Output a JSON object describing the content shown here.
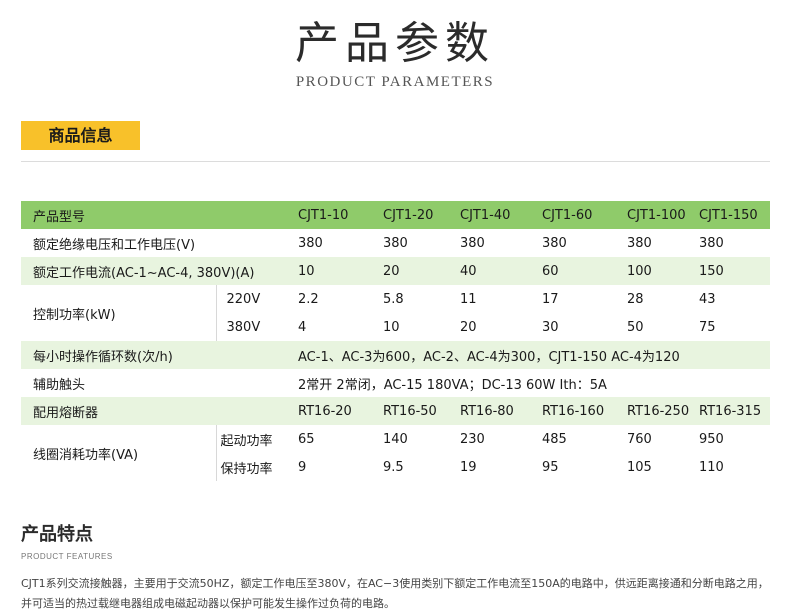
{
  "header": {
    "title": "产品参数",
    "subtitle": "PRODUCT PARAMETERS"
  },
  "section": {
    "tag": "商品信息"
  },
  "table": {
    "model": {
      "label": "产品型号",
      "values": [
        "CJT1-10",
        "CJT1-20",
        "CJT1-40",
        "CJT1-60",
        "CJT1-100",
        "CJT1-150"
      ]
    },
    "insulation_voltage": {
      "label": "额定绝缘电压和工作电压(V)",
      "values": [
        "380",
        "380",
        "380",
        "380",
        "380",
        "380"
      ]
    },
    "rated_current": {
      "label": "额定工作电流(AC-1~AC-4, 380V)(A)",
      "values": [
        "10",
        "20",
        "40",
        "60",
        "100",
        "150"
      ]
    },
    "control_power": {
      "label": "控制功率(kW)",
      "rows": [
        {
          "sub": "220V",
          "values": [
            "2.2",
            "5.8",
            "11",
            "17",
            "28",
            "43"
          ]
        },
        {
          "sub": "380V",
          "values": [
            "4",
            "10",
            "20",
            "30",
            "50",
            "75"
          ]
        }
      ]
    },
    "cycles": {
      "label": "每小时操作循环数(次/h)",
      "value": "AC-1、AC-3为600，AC-2、AC-4为300，CJT1-150  AC-4为120"
    },
    "aux_contacts": {
      "label": "辅助触头",
      "value": "2常开  2常闭，AC-15   180VA；DC-13  60W  Ith：5A"
    },
    "fuse": {
      "label": "配用熔断器",
      "values": [
        "RT16-20",
        "RT16-50",
        "RT16-80",
        "RT16-160",
        "RT16-250",
        "RT16-315"
      ]
    },
    "coil_power": {
      "label": "线圈消耗功率(VA)",
      "rows": [
        {
          "sub": "起动功率",
          "values": [
            "65",
            "140",
            "230",
            "485",
            "760",
            "950"
          ]
        },
        {
          "sub": "保持功率",
          "values": [
            "9",
            "9.5",
            "19",
            "95",
            "105",
            "110"
          ]
        }
      ]
    }
  },
  "features": {
    "title": "产品特点",
    "subtitle": "PRODUCT FEATURES",
    "body": "CJT1系列交流接触器，主要用于交流50HZ，额定工作电压至380V，在AC−3使用类别下额定工作电流至150A的电路中，供远距离接通和分断电路之用，并可适当的热过载继电器组成电磁起动器以保护可能发生操作过负荷的电路。"
  }
}
